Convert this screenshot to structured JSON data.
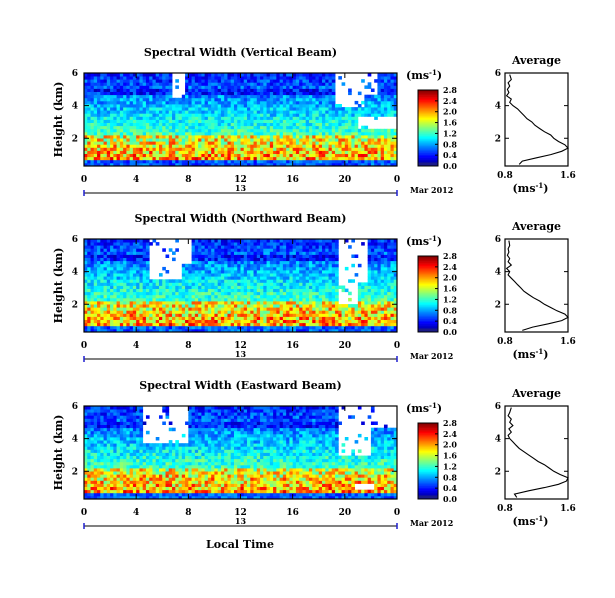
{
  "figure": {
    "x_axis_label": "Local Time",
    "date_label": "13",
    "month_year_label": "Mar 2012"
  },
  "chart_data": [
    {
      "type": "heatmap",
      "title": "Spectral Width (Vertical Beam)",
      "xlabel": "",
      "ylabel": "Height (km)",
      "xlim": [
        0,
        24
      ],
      "ylim": [
        0.3,
        6
      ],
      "x_ticks": [
        "0",
        "4",
        "8",
        "12",
        "16",
        "20",
        "0"
      ],
      "y_ticks": [
        "2",
        "4",
        "6"
      ],
      "colorbar": {
        "unit": "(ms⁻¹)",
        "ticks": [
          "0.0",
          "0.4",
          "0.8",
          "1.2",
          "1.6",
          "2.0",
          "2.4",
          "2.8"
        ],
        "range": [
          0,
          2.8
        ]
      }
    },
    {
      "type": "line",
      "title": "Average",
      "xlabel": "(ms⁻¹)",
      "ylabel": "",
      "xlim": [
        0.8,
        1.6
      ],
      "ylim": [
        0.3,
        6
      ],
      "x_ticks": [
        "0.8",
        "1.6"
      ],
      "y_ticks": [
        "2",
        "4",
        "6"
      ],
      "series": [
        {
          "x": [
            0.98,
            1.02,
            1.2,
            1.38,
            1.52,
            1.6,
            1.56,
            1.48,
            1.42,
            1.38,
            1.3,
            1.24,
            1.18,
            1.14,
            1.08,
            1.04,
            1.0,
            0.96,
            0.9,
            0.86,
            0.88,
            0.82,
            0.85,
            0.83,
            0.86,
            0.84,
            0.88,
            0.86
          ],
          "y": [
            0.4,
            0.6,
            0.8,
            1.0,
            1.2,
            1.4,
            1.6,
            1.8,
            2.0,
            2.2,
            2.4,
            2.6,
            2.8,
            3.0,
            3.2,
            3.4,
            3.6,
            3.8,
            4.0,
            4.2,
            4.4,
            4.6,
            4.8,
            5.0,
            5.2,
            5.4,
            5.6,
            5.9
          ]
        }
      ]
    },
    {
      "type": "heatmap",
      "title": "Spectral Width (Northward Beam)",
      "xlabel": "",
      "ylabel": "Height (km)",
      "xlim": [
        0,
        24
      ],
      "ylim": [
        0.3,
        6
      ],
      "x_ticks": [
        "0",
        "4",
        "8",
        "12",
        "16",
        "20",
        "0"
      ],
      "y_ticks": [
        "2",
        "4",
        "6"
      ],
      "colorbar": {
        "unit": "(ms⁻¹)",
        "ticks": [
          "0.0",
          "0.4",
          "0.8",
          "1.2",
          "1.6",
          "2.0",
          "2.4",
          "2.8"
        ],
        "range": [
          0,
          2.8
        ]
      }
    },
    {
      "type": "line",
      "title": "Average",
      "xlabel": "(ms⁻¹)",
      "ylabel": "",
      "xlim": [
        0.8,
        1.6
      ],
      "ylim": [
        0.3,
        6
      ],
      "x_ticks": [
        "0.8",
        "1.6"
      ],
      "y_ticks": [
        "2",
        "4",
        "6"
      ],
      "series": [
        {
          "x": [
            1.02,
            1.15,
            1.35,
            1.52,
            1.6,
            1.56,
            1.46,
            1.38,
            1.3,
            1.24,
            1.16,
            1.1,
            1.04,
            1.0,
            0.96,
            0.92,
            0.88,
            0.84,
            0.86,
            0.82,
            0.88,
            0.84,
            0.86,
            0.83,
            0.85,
            0.84,
            0.86,
            0.85
          ],
          "y": [
            0.4,
            0.6,
            0.8,
            1.0,
            1.2,
            1.4,
            1.6,
            1.8,
            2.0,
            2.2,
            2.4,
            2.6,
            2.8,
            3.0,
            3.2,
            3.4,
            3.6,
            3.8,
            4.0,
            4.2,
            4.4,
            4.6,
            4.8,
            5.0,
            5.2,
            5.4,
            5.6,
            5.9
          ]
        }
      ]
    },
    {
      "type": "heatmap",
      "title": "Spectral Width (Eastward Beam)",
      "xlabel": "",
      "ylabel": "Height (km)",
      "xlim": [
        0,
        24
      ],
      "ylim": [
        0.3,
        6
      ],
      "x_ticks": [
        "0",
        "4",
        "8",
        "12",
        "16",
        "20",
        "0"
      ],
      "y_ticks": [
        "2",
        "4",
        "6"
      ],
      "colorbar": {
        "unit": "(ms⁻¹)",
        "ticks": [
          "0.0",
          "0.4",
          "0.8",
          "1.2",
          "1.6",
          "2.0",
          "2.4",
          "2.8"
        ],
        "range": [
          0,
          2.8
        ]
      }
    },
    {
      "type": "line",
      "title": "Average",
      "xlabel": "(ms⁻¹)",
      "ylabel": "",
      "xlim": [
        0.8,
        1.6
      ],
      "ylim": [
        0.3,
        6
      ],
      "x_ticks": [
        "0.8",
        "1.6"
      ],
      "y_ticks": [
        "2",
        "4",
        "6"
      ],
      "series": [
        {
          "x": [
            0.95,
            0.92,
            1.1,
            1.3,
            1.48,
            1.58,
            1.6,
            1.5,
            1.42,
            1.36,
            1.3,
            1.22,
            1.16,
            1.1,
            1.04,
            0.98,
            0.94,
            0.9,
            0.86,
            0.84,
            0.88,
            0.85,
            0.9,
            0.86,
            0.88,
            0.84,
            0.86,
            0.88
          ],
          "y": [
            0.4,
            0.6,
            0.8,
            1.0,
            1.2,
            1.4,
            1.6,
            1.8,
            2.0,
            2.2,
            2.4,
            2.6,
            2.8,
            3.0,
            3.2,
            3.4,
            3.6,
            3.8,
            4.0,
            4.2,
            4.4,
            4.6,
            4.8,
            5.0,
            5.2,
            5.4,
            5.6,
            5.9
          ]
        }
      ]
    }
  ]
}
